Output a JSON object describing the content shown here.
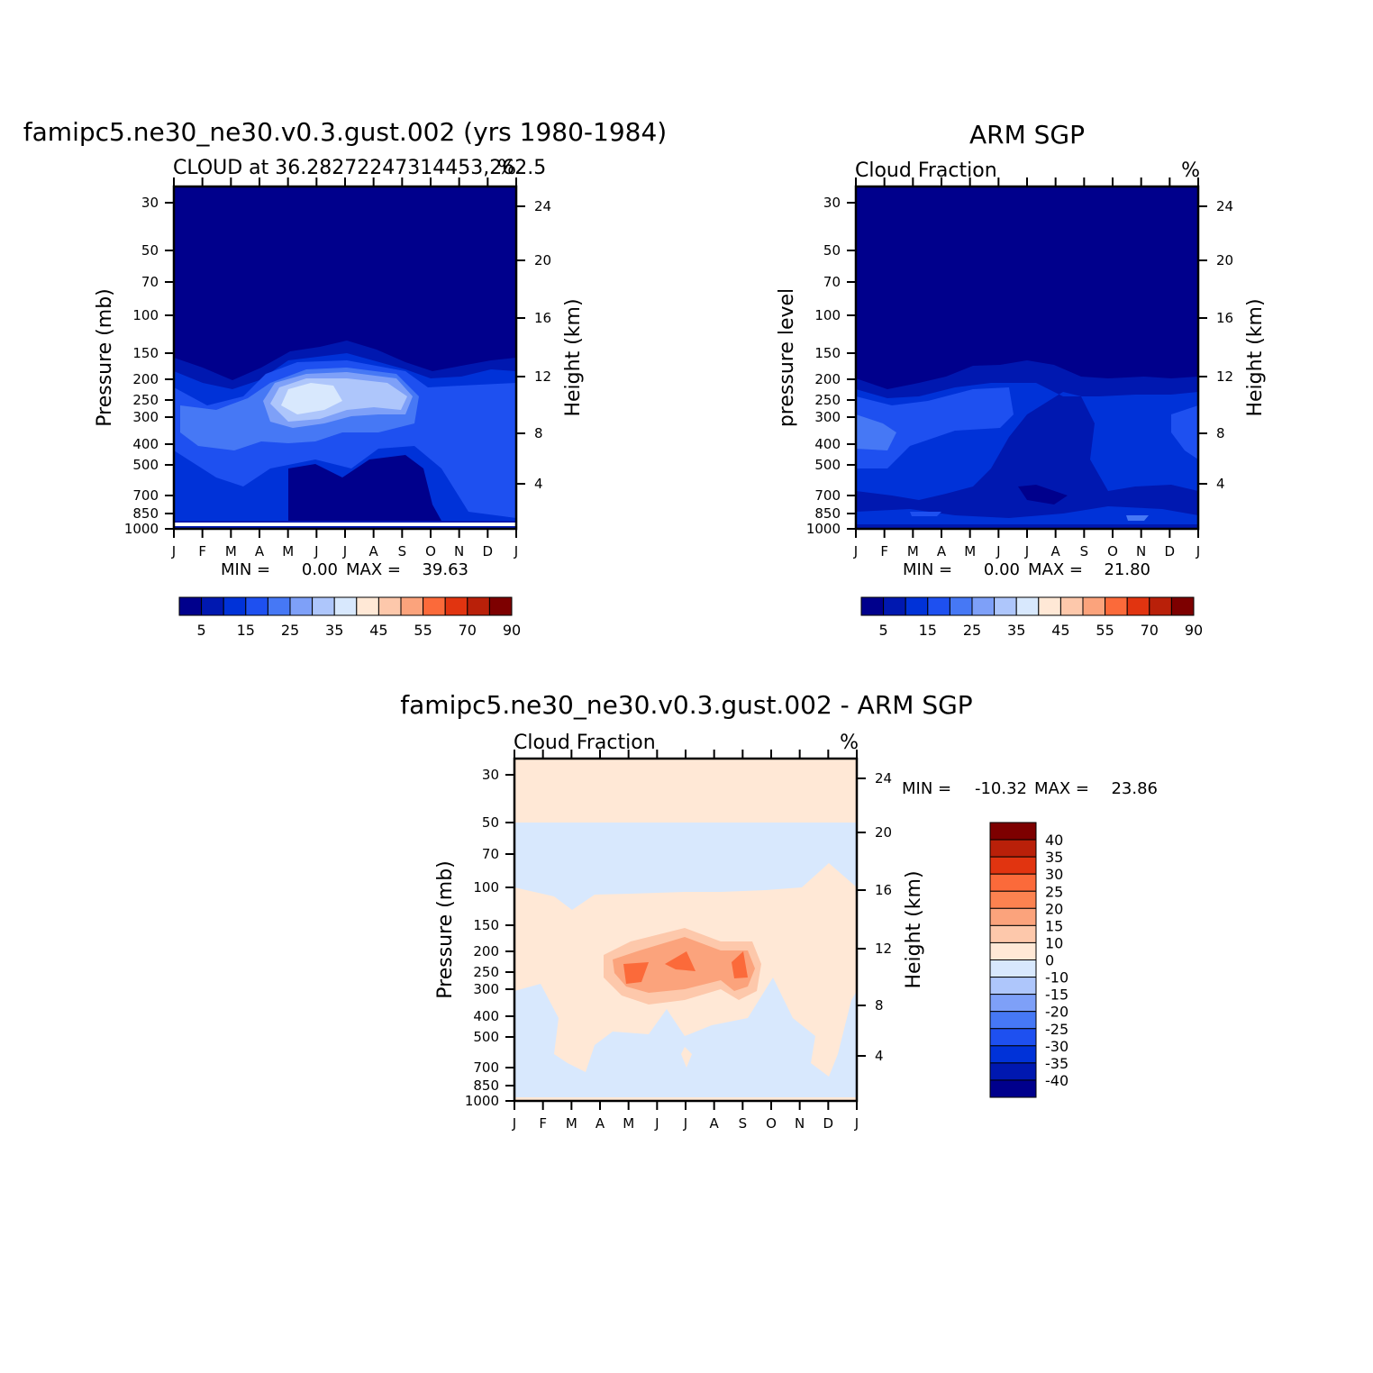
{
  "palette": [
    "#00008c",
    "#0018b0",
    "#0032d8",
    "#1e50f0",
    "#4678f5",
    "#7ea0f8",
    "#aec6fb",
    "#d8e8fd",
    "#ffe8d6",
    "#fdc8ab",
    "#fba37c",
    "#fb6a3a",
    "#e13410",
    "#b92009",
    "#7d0000"
  ],
  "months": [
    "J",
    "F",
    "M",
    "A",
    "M",
    "J",
    "J",
    "A",
    "S",
    "O",
    "N",
    "D",
    "J"
  ],
  "pressure_ticks": [
    "30",
    "50",
    "70",
    "100",
    "150",
    "200",
    "250",
    "300",
    "400",
    "500",
    "700",
    "850",
    "1000"
  ],
  "height_ticks": [
    "24",
    "20",
    "16",
    "12",
    "8",
    "4"
  ],
  "panels": {
    "model": {
      "title": "famipc5.ne30_ne30.v0.3.gust.002 (yrs 1980-1984)",
      "left_label": "CLOUD at 36.28272247314453,262.5",
      "units": "%",
      "ylabel": "Pressure (mb)",
      "ylabel_right": "Height (km)",
      "stats": {
        "min_label": "MIN =",
        "min": "0.00",
        "max_label": "MAX =",
        "max": "39.63"
      }
    },
    "obs": {
      "title": "ARM SGP",
      "left_label": "Cloud Fraction",
      "units": "%",
      "ylabel": "pressure level",
      "ylabel_right": "Height (km)",
      "stats": {
        "min_label": "MIN =",
        "min": "0.00",
        "max_label": "MAX =",
        "max": "21.80"
      }
    },
    "diff": {
      "title": "famipc5.ne30_ne30.v0.3.gust.002 - ARM SGP",
      "left_label": "Cloud Fraction",
      "units": "%",
      "ylabel": "Pressure (mb)",
      "ylabel_right": "Height (km)",
      "stats": {
        "min_label": "MIN =",
        "min": "-10.32",
        "max_label": "MAX =",
        "max": "23.86"
      }
    }
  },
  "colorbar_top": {
    "labels": [
      "5",
      "15",
      "25",
      "35",
      "45",
      "55",
      "70",
      "90"
    ]
  },
  "colorbar_diff": {
    "colors": [
      "#7d0000",
      "#b92009",
      "#e13410",
      "#fb6a3a",
      "#fb8250",
      "#fba37c",
      "#fdc8ab",
      "#ffe8d6",
      "#d8e8fd",
      "#aec6fb",
      "#7ea0f8",
      "#4678f5",
      "#1e50f0",
      "#0032d8",
      "#0018b0",
      "#00008c"
    ],
    "labels": [
      "40",
      "35",
      "30",
      "25",
      "20",
      "15",
      "10",
      "0",
      "-10",
      "-15",
      "-20",
      "-25",
      "-30",
      "-35",
      "-40"
    ]
  },
  "chart_data": [
    {
      "type": "heatmap",
      "title": "famipc5.ne30_ne30.v0.3.gust.002 (yrs 1980-1984)",
      "subtitle": "CLOUD at 36.28272247314453,262.5",
      "x": [
        "J",
        "F",
        "M",
        "A",
        "M",
        "J",
        "J",
        "A",
        "S",
        "O",
        "N",
        "D",
        "J"
      ],
      "y_pressure_mb": [
        30,
        50,
        70,
        100,
        150,
        200,
        250,
        300,
        400,
        500,
        700,
        850,
        1000
      ],
      "ylabel": "Pressure (mb)",
      "ylabel_right": "Height (km)",
      "units": "%",
      "values": [
        [
          0,
          0,
          0,
          0,
          0,
          0,
          0,
          0,
          0,
          0,
          0,
          0,
          0
        ],
        [
          0,
          0,
          0,
          0,
          0,
          0,
          0,
          0,
          0,
          0,
          0,
          0,
          0
        ],
        [
          0,
          0,
          0,
          0,
          0,
          0,
          0,
          0,
          0,
          0,
          0,
          0,
          0
        ],
        [
          0,
          0,
          0,
          0,
          0,
          0,
          0,
          0,
          0,
          0,
          0,
          0,
          0
        ],
        [
          5,
          3,
          2,
          3,
          6,
          7,
          8,
          6,
          5,
          3,
          3,
          4,
          5
        ],
        [
          15,
          10,
          8,
          12,
          25,
          32,
          30,
          28,
          22,
          12,
          10,
          12,
          15
        ],
        [
          20,
          15,
          15,
          20,
          35,
          38,
          35,
          33,
          33,
          20,
          18,
          20,
          20
        ],
        [
          25,
          22,
          22,
          25,
          33,
          30,
          28,
          28,
          25,
          22,
          22,
          24,
          25
        ],
        [
          22,
          25,
          25,
          22,
          20,
          18,
          15,
          15,
          18,
          18,
          22,
          22,
          22
        ],
        [
          18,
          20,
          18,
          15,
          12,
          10,
          8,
          8,
          10,
          12,
          15,
          18,
          18
        ],
        [
          12,
          10,
          10,
          8,
          5,
          5,
          5,
          5,
          5,
          5,
          8,
          10,
          12
        ],
        [
          8,
          6,
          5,
          5,
          5,
          3,
          3,
          3,
          3,
          3,
          5,
          6,
          8
        ],
        [
          0,
          0,
          0,
          0,
          0,
          0,
          0,
          0,
          0,
          0,
          0,
          0,
          0
        ]
      ],
      "min": 0.0,
      "max": 39.63
    },
    {
      "type": "heatmap",
      "title": "ARM SGP",
      "subtitle": "Cloud Fraction",
      "x": [
        "J",
        "F",
        "M",
        "A",
        "M",
        "J",
        "J",
        "A",
        "S",
        "O",
        "N",
        "D",
        "J"
      ],
      "y_pressure_mb": [
        30,
        50,
        70,
        100,
        150,
        200,
        250,
        300,
        400,
        500,
        700,
        850,
        1000
      ],
      "ylabel": "pressure level",
      "ylabel_right": "Height (km)",
      "units": "%",
      "values": [
        [
          0,
          0,
          0,
          0,
          0,
          0,
          0,
          0,
          0,
          0,
          0,
          0,
          0
        ],
        [
          0,
          0,
          0,
          0,
          0,
          0,
          0,
          0,
          0,
          0,
          0,
          0,
          0
        ],
        [
          0,
          0,
          0,
          0,
          0,
          0,
          0,
          0,
          0,
          0,
          0,
          0,
          0
        ],
        [
          0,
          0,
          0,
          0,
          0,
          0,
          0,
          0,
          0,
          0,
          0,
          0,
          0
        ],
        [
          0,
          0,
          0,
          0,
          0,
          0,
          0,
          0,
          0,
          0,
          0,
          0,
          0
        ],
        [
          8,
          5,
          5,
          6,
          8,
          9,
          10,
          8,
          8,
          6,
          6,
          6,
          8
        ],
        [
          15,
          12,
          12,
          13,
          15,
          15,
          12,
          10,
          10,
          10,
          10,
          10,
          15
        ],
        [
          21,
          15,
          15,
          16,
          16,
          16,
          12,
          8,
          8,
          10,
          10,
          12,
          18
        ],
        [
          20,
          18,
          16,
          15,
          15,
          14,
          10,
          8,
          8,
          10,
          12,
          15,
          16
        ],
        [
          18,
          16,
          15,
          14,
          13,
          12,
          8,
          8,
          8,
          10,
          12,
          14,
          15
        ],
        [
          10,
          8,
          8,
          6,
          6,
          6,
          5,
          5,
          6,
          8,
          10,
          10,
          10
        ],
        [
          10,
          12,
          10,
          8,
          8,
          6,
          6,
          8,
          10,
          12,
          15,
          12,
          10
        ],
        [
          5,
          5,
          5,
          5,
          5,
          5,
          5,
          5,
          5,
          5,
          5,
          5,
          5
        ]
      ],
      "min": 0.0,
      "max": 21.8
    },
    {
      "type": "heatmap",
      "title": "famipc5.ne30_ne30.v0.3.gust.002 - ARM SGP",
      "subtitle": "Cloud Fraction",
      "x": [
        "J",
        "F",
        "M",
        "A",
        "M",
        "J",
        "J",
        "A",
        "S",
        "O",
        "N",
        "D",
        "J"
      ],
      "y_pressure_mb": [
        30,
        50,
        70,
        100,
        150,
        200,
        250,
        300,
        400,
        500,
        700,
        850,
        1000
      ],
      "ylabel": "Pressure (mb)",
      "ylabel_right": "Height (km)",
      "units": "%",
      "values": [
        [
          0,
          0,
          0,
          0,
          0,
          0,
          0,
          0,
          0,
          0,
          0,
          0,
          0
        ],
        [
          0,
          0,
          0,
          0,
          0,
          0,
          0,
          0,
          0,
          0,
          0,
          0,
          0
        ],
        [
          -1,
          -1,
          -1,
          -1,
          -1,
          -1,
          -1,
          -1,
          -1,
          -1,
          -1,
          -1,
          -1
        ],
        [
          1,
          -1,
          -1,
          1,
          1,
          1,
          1,
          1,
          1,
          1,
          1,
          1,
          -1
        ],
        [
          2,
          1,
          1,
          2,
          5,
          6,
          7,
          5,
          4,
          2,
          2,
          2,
          2
        ],
        [
          2,
          2,
          2,
          6,
          14,
          18,
          20,
          18,
          15,
          5,
          2,
          2,
          2
        ],
        [
          2,
          2,
          2,
          8,
          20,
          22,
          24,
          22,
          22,
          8,
          4,
          4,
          2
        ],
        [
          -2,
          2,
          2,
          6,
          16,
          14,
          14,
          14,
          12,
          4,
          4,
          2,
          -2
        ],
        [
          -2,
          2,
          2,
          2,
          -2,
          -2,
          2,
          2,
          2,
          -2,
          2,
          2,
          -2
        ],
        [
          -2,
          2,
          2,
          -2,
          -2,
          -2,
          -2,
          2,
          -2,
          -2,
          -2,
          2,
          -2
        ],
        [
          -2,
          2,
          2,
          -2,
          -2,
          -2,
          -2,
          -2,
          -2,
          -2,
          -2,
          2,
          -2
        ],
        [
          -2,
          -2,
          -2,
          -2,
          -2,
          -2,
          -2,
          -2,
          -2,
          -2,
          -2,
          -2,
          -2
        ],
        [
          0,
          0,
          0,
          0,
          0,
          0,
          0,
          0,
          0,
          0,
          0,
          0,
          0
        ]
      ],
      "min": -10.32,
      "max": 23.86
    }
  ]
}
